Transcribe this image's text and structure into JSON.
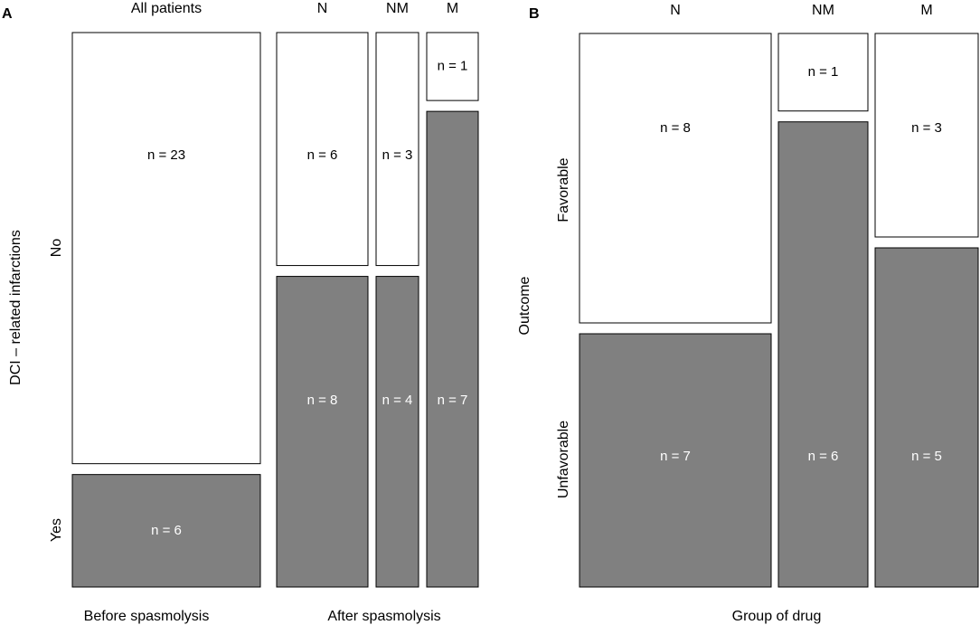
{
  "colors": {
    "yes_fill": "#808080",
    "no_fill": "#ffffff",
    "stroke": "#000000",
    "text_on_dark": "#ffffff",
    "text_on_light": "#000000"
  },
  "chart_data": [
    {
      "panel": "A",
      "type": "mosaic",
      "ylabel": "DCI – related infarctions",
      "row_labels": [
        "No",
        "Yes"
      ],
      "group_labels": [
        "Before spasmolysis",
        "After spasmolysis"
      ],
      "columns": [
        {
          "label": "All patients",
          "group": "Before spasmolysis",
          "no": 23,
          "yes": 6,
          "no_text": "n = 23",
          "yes_text": "n = 6"
        },
        {
          "label": "N",
          "group": "After spasmolysis",
          "no": 6,
          "yes": 8,
          "no_text": "n = 6",
          "yes_text": "n = 8"
        },
        {
          "label": "NM",
          "group": "After spasmolysis",
          "no": 3,
          "yes": 4,
          "no_text": "n = 3",
          "yes_text": "n = 4"
        },
        {
          "label": "M",
          "group": "After spasmolysis",
          "no": 1,
          "yes": 7,
          "no_text": "n = 1",
          "yes_text": "n = 7"
        }
      ]
    },
    {
      "panel": "B",
      "type": "mosaic",
      "ylabel": "Outcome",
      "xlabel": "Group of drug",
      "row_labels": [
        "Favorable",
        "Unfavorable"
      ],
      "columns": [
        {
          "label": "N",
          "favorable": 8,
          "unfavorable": 7,
          "fav_text": "n = 8",
          "unfav_text": "n = 7"
        },
        {
          "label": "NM",
          "favorable": 1,
          "unfavorable": 6,
          "fav_text": "n = 1",
          "unfav_text": "n = 6"
        },
        {
          "label": "M",
          "favorable": 3,
          "unfavorable": 5,
          "fav_text": "n = 3",
          "unfav_text": "n = 5"
        }
      ]
    }
  ]
}
